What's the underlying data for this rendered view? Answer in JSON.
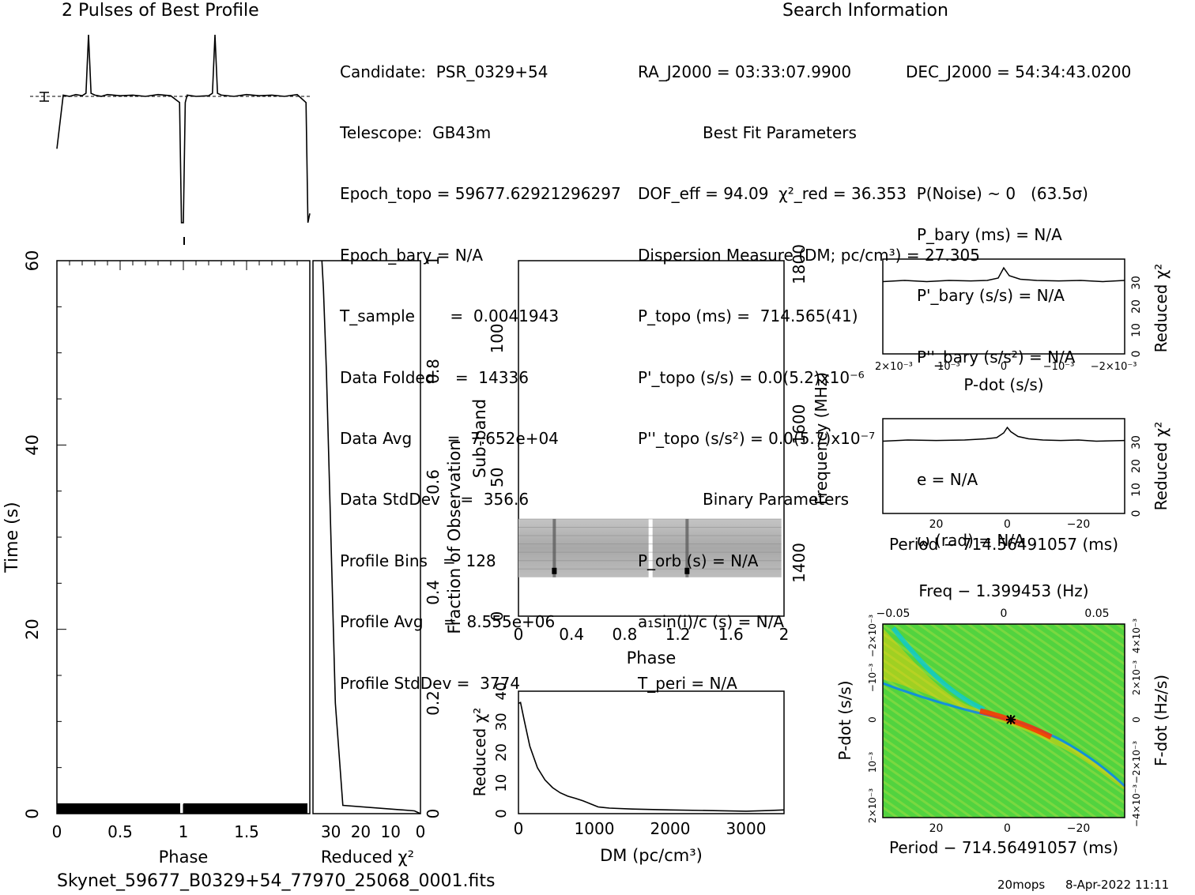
{
  "profile_title": "2 Pulses of Best Profile",
  "search_title": "Search Information",
  "candidate_info": [
    "Candidate:  PSR_0329+54",
    "Telescope:  GB43m",
    "Epoch_topo = 59677.62921296297",
    "Epoch_bary = N/A",
    "T_sample       =  0.0041943",
    "Data Folded    =  14336",
    "Data Avg       =  7.652e+04",
    "Data StdDev    =  356.6",
    "Profile Bins   =  128",
    "Profile Avg    =  8.555e+06",
    "Profile StdDev =  3774"
  ],
  "search_info": [
    "RA_J2000 = 03:33:07.9900",
    "Best Fit Parameters",
    "DOF_eff = 94.09  χ²_red = 36.353  P(Noise) ~ 0   (63.5σ)",
    "Dispersion Measure (DM; pc/cm³) = 27.305",
    "P_topo (ms) =  714.565(41)",
    "P'_topo (s/s) = 0.0(5.2)x10⁻⁶",
    "P''_topo (s/s²) = 0.0(5.7)x10⁻⁷",
    "Binary Parameters",
    "P_orb (s) = N/A",
    "a₁sin(i)/c (s) = N/A",
    "T_peri = N/A"
  ],
  "search_info_right": [
    "DEC_J2000 = 54:34:43.0200",
    "P_bary (ms) = N/A",
    "P'_bary (s/s) = N/A",
    "P''_bary (s/s²) = N/A",
    "e = N/A",
    "ω (rad) = N/A"
  ],
  "footer": {
    "filename": "Skynet_59677_B0329+54_77970_25068_0001.fits",
    "program": "20mops",
    "date": "8-Apr-2022 11:11"
  },
  "chart_data": [
    {
      "id": "profile",
      "type": "line",
      "title": "2 Pulses of Best Profile",
      "x": [
        0,
        0.05,
        0.1,
        0.15,
        0.2,
        0.23,
        0.25,
        0.27,
        0.3,
        0.35,
        0.4,
        0.5,
        0.6,
        0.7,
        0.8,
        0.9,
        0.97,
        0.985,
        1.0,
        1.015,
        1.03,
        1.1,
        1.2,
        1.23,
        1.25,
        1.27,
        1.3,
        1.4,
        1.5,
        1.6,
        1.7,
        1.8,
        1.9,
        1.97,
        1.985,
        2.0
      ],
      "y": [
        -0.85,
        0.02,
        0.0,
        0.03,
        0.01,
        0.05,
        1.0,
        0.05,
        0.02,
        0.0,
        0.03,
        0.01,
        0.02,
        0.0,
        0.03,
        0.01,
        -0.1,
        -2.05,
        -2.05,
        -0.1,
        0.02,
        0.0,
        0.01,
        0.05,
        1.0,
        0.05,
        0.02,
        0.0,
        0.03,
        0.01,
        0.02,
        0.0,
        0.03,
        -0.1,
        -2.05,
        -1.9
      ],
      "xlim": [
        0,
        2
      ],
      "grid": false
    },
    {
      "id": "time-phase",
      "type": "heatmap",
      "xlabel": "Phase",
      "ylabel": "Time (s)",
      "xlim": [
        0,
        2
      ],
      "ylim": [
        0,
        60
      ],
      "x_ticks": [
        "0",
        "0.5",
        "1",
        "1.5"
      ],
      "y_ticks": [
        "0",
        "20",
        "40",
        "60"
      ]
    },
    {
      "id": "time-chi2",
      "type": "line",
      "xlabel": "Reduced χ²",
      "ylabel": "Fraction of Observation",
      "x_ticks": [
        "30",
        "20",
        "10",
        "0"
      ],
      "y_ticks": [
        "0",
        "0.2",
        "0.4",
        "0.6",
        "0.8",
        "1"
      ],
      "fraction": [
        0.0,
        0.005,
        0.015,
        0.2,
        0.5,
        0.8,
        0.95,
        1.0
      ],
      "chi2": [
        0,
        2,
        26,
        28.5,
        30,
        31.5,
        32.5,
        33
      ]
    },
    {
      "id": "subband-phase",
      "type": "heatmap",
      "xlabel": "Phase",
      "ylabel": "Sub-band",
      "y2label": "Frequency (MHz)",
      "xlim": [
        0,
        2
      ],
      "ylim": [
        0,
        128
      ],
      "x_ticks": [
        "0",
        "0.4",
        "0.8",
        "1.2",
        "1.6",
        "2"
      ],
      "y_ticks": [
        "0",
        "50",
        "100"
      ],
      "y2_ticks": [
        "1400",
        "1600",
        "1800"
      ],
      "band_range": [
        14,
        35
      ],
      "pulse_phases": [
        0.27,
        1.27
      ]
    },
    {
      "id": "dm-chi2",
      "type": "line",
      "xlabel": "DM (pc/cm³)",
      "ylabel": "Reduced χ²",
      "xlim": [
        0,
        3500
      ],
      "ylim": [
        0,
        40
      ],
      "x_ticks": [
        "0",
        "1000",
        "2000",
        "3000"
      ],
      "y_ticks": [
        "0",
        "10",
        "20",
        "30",
        "40"
      ],
      "x": [
        0,
        27,
        80,
        150,
        250,
        350,
        450,
        550,
        650,
        750,
        850,
        950,
        1050,
        1200,
        1500,
        2000,
        2500,
        3000,
        3300,
        3500
      ],
      "y": [
        36,
        36.3,
        30,
        22,
        15,
        11,
        8.5,
        6.8,
        5.7,
        5,
        4.2,
        3.2,
        2.2,
        1.8,
        1.5,
        1.2,
        1.0,
        0.8,
        1.0,
        1.2
      ]
    },
    {
      "id": "pdot-chi2",
      "type": "line",
      "xlabel": "P-dot (s/s)",
      "ylabel": "Reduced χ²",
      "xlim": [
        0.0022,
        -0.0022
      ],
      "ylim": [
        0,
        40
      ],
      "x_ticks": [
        "2×10⁻³",
        "10⁻³",
        "0",
        "−10⁻³",
        "−2×10⁻³"
      ],
      "y_ticks": [
        "0",
        "10",
        "20",
        "30"
      ],
      "x": [
        0.0022,
        0.0018,
        0.0014,
        0.001,
        0.0006,
        0.0003,
        0.0001,
        0,
        -0.0001,
        -0.0003,
        -0.0006,
        -0.001,
        -0.0014,
        -0.0018,
        -0.0022
      ],
      "y": [
        30.5,
        31,
        30.5,
        31,
        30.8,
        31,
        32,
        36.3,
        33,
        31.5,
        31,
        30.8,
        31,
        30.5,
        31
      ]
    },
    {
      "id": "period-chi2",
      "type": "line",
      "xlabel": "Period − 714.56491057 (ms)",
      "ylabel": "Reduced χ²",
      "xlim": [
        35,
        -33
      ],
      "ylim": [
        0,
        40
      ],
      "x_ticks": [
        "20",
        "0",
        "−20"
      ],
      "y_ticks": [
        "0",
        "10",
        "20",
        "30"
      ],
      "x": [
        35,
        28,
        20,
        12,
        6,
        3,
        1,
        0,
        -1,
        -3,
        -6,
        -10,
        -15,
        -20,
        -25,
        -33
      ],
      "y": [
        30.5,
        31,
        30.8,
        31,
        31.5,
        32,
        34,
        36.3,
        34.5,
        32.5,
        31.5,
        31,
        30.8,
        31,
        30.5,
        30.8
      ]
    },
    {
      "id": "pdot-period",
      "type": "heatmap",
      "title": "Freq − 1.399453 (Hz)",
      "xlabel": "Period − 714.56491057 (ms)",
      "ylabel": "P-dot (s/s)",
      "y2label": "F-dot (Hz/s)",
      "xlim": [
        35,
        -33
      ],
      "x_ticks": [
        "20",
        "0",
        "−20"
      ],
      "top_ticks": [
        "−0.05",
        "0",
        "0.05"
      ],
      "y_ticks": [
        "2×10⁻³",
        "10⁻³",
        "0",
        "−10⁻³",
        "−2×10⁻³"
      ],
      "y2_ticks": [
        "−4×10⁻³",
        "−2×10⁻³",
        "0",
        "2×10⁻³",
        "4×10⁻³"
      ],
      "best_fit": [
        0,
        0
      ]
    }
  ]
}
